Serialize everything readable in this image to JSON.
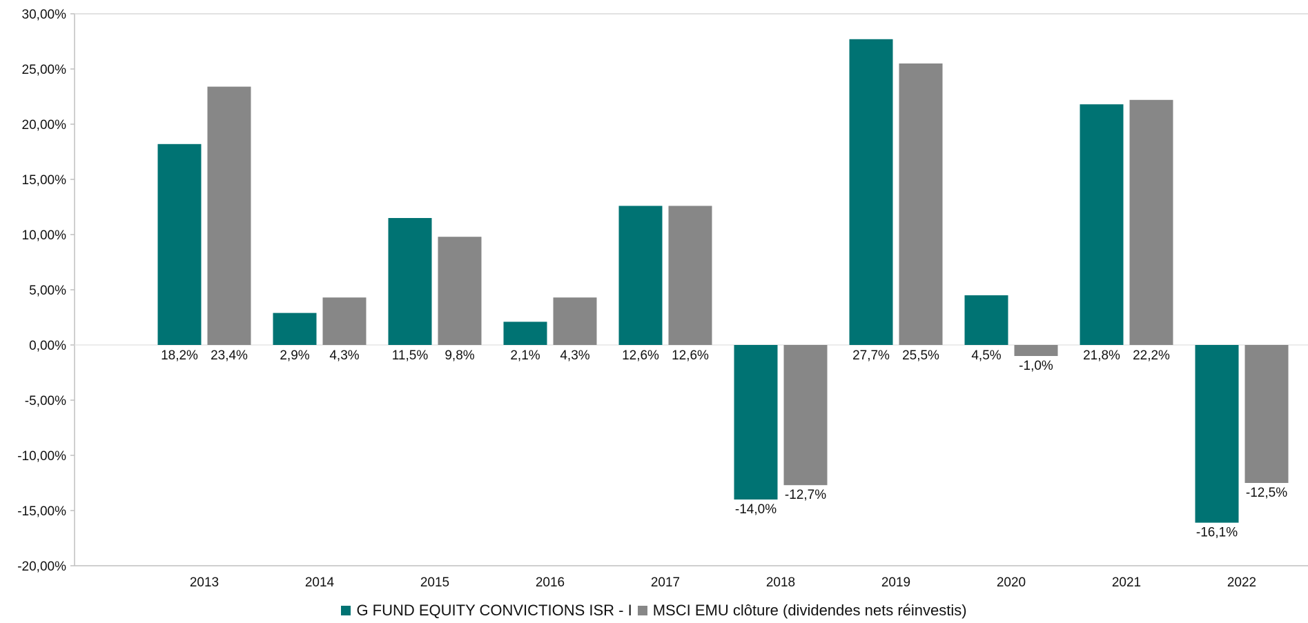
{
  "chart_data": {
    "type": "bar",
    "categories": [
      "2013",
      "2014",
      "2015",
      "2016",
      "2017",
      "2018",
      "2019",
      "2020",
      "2021",
      "2022"
    ],
    "series": [
      {
        "name": "G FUND EQUITY CONVICTIONS ISR - I",
        "color": "#007373",
        "values": [
          18.2,
          2.9,
          11.5,
          2.1,
          12.6,
          -14.0,
          27.7,
          4.5,
          21.8,
          -16.1
        ],
        "labels": [
          "18,2%",
          "2,9%",
          "11,5%",
          "2,1%",
          "12,6%",
          "-14,0%",
          "27,7%",
          "4,5%",
          "21,8%",
          "-16,1%"
        ]
      },
      {
        "name": "MSCI EMU clôture (dividendes nets réinvestis)",
        "color": "#878787",
        "values": [
          23.4,
          4.3,
          9.8,
          4.3,
          12.6,
          -12.7,
          25.5,
          -1.0,
          22.2,
          -12.5
        ],
        "labels": [
          "23,4%",
          "4,3%",
          "9,8%",
          "4,3%",
          "12,6%",
          "-12,7%",
          "25,5%",
          "-1,0%",
          "22,2%",
          "-12,5%"
        ]
      }
    ],
    "ylim": [
      -20,
      30
    ],
    "yticks": [
      30,
      25,
      20,
      15,
      10,
      5,
      0,
      -5,
      -10,
      -15,
      -20
    ],
    "ytick_labels": [
      "30,00%",
      "25,00%",
      "20,00%",
      "15,00%",
      "10,00%",
      "5,00%",
      "0,00%",
      "-5,00%",
      "-10,00%",
      "-15,00%",
      "-20,00%"
    ],
    "title": "",
    "xlabel": "",
    "ylabel": "",
    "grid": false,
    "legend_position": "bottom"
  }
}
